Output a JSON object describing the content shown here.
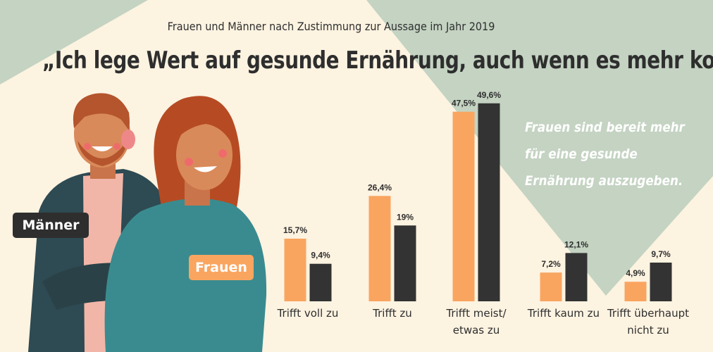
{
  "subtitle": "Frauen und Männer nach Zustimmung zur Aussage im Jahr 2019",
  "title": "„Ich lege Wert auf gesunde Ernährung, auch wenn es mehr kostet“",
  "note_lines": [
    "Frauen sind bereit mehr",
    "für eine gesunde",
    "Ernährung auszugeben."
  ],
  "labels": {
    "men": "Männer",
    "women": "Frauen"
  },
  "colors": {
    "women": "#f9a560",
    "men": "#333333",
    "background": "#fdf3e1",
    "accent_green": "#c4d3c2"
  },
  "chart_data": {
    "type": "bar",
    "categories": [
      "Trifft voll zu",
      "Trifft zu",
      "Trifft meist/ etwas zu",
      "Trifft kaum zu",
      "Trifft überhaupt nicht zu"
    ],
    "category_lines": [
      [
        "Trifft voll zu"
      ],
      [
        "Trifft zu"
      ],
      [
        "Trifft meist/",
        "etwas zu"
      ],
      [
        "Trifft kaum zu"
      ],
      [
        "Trifft überhaupt",
        "nicht zu"
      ]
    ],
    "series": [
      {
        "name": "Frauen",
        "values": [
          15.7,
          26.4,
          47.5,
          7.2,
          4.9
        ],
        "value_labels": [
          "15,7%",
          "26,4%",
          "47,5%",
          "7,2%",
          "4,9%"
        ]
      },
      {
        "name": "Männer",
        "values": [
          9.4,
          19,
          49.6,
          12.1,
          9.7
        ],
        "value_labels": [
          "9,4%",
          "19%",
          "49,6%",
          "12,1%",
          "9,7%"
        ]
      }
    ],
    "ylim": [
      0,
      50
    ],
    "xlabel": "",
    "ylabel": ""
  }
}
